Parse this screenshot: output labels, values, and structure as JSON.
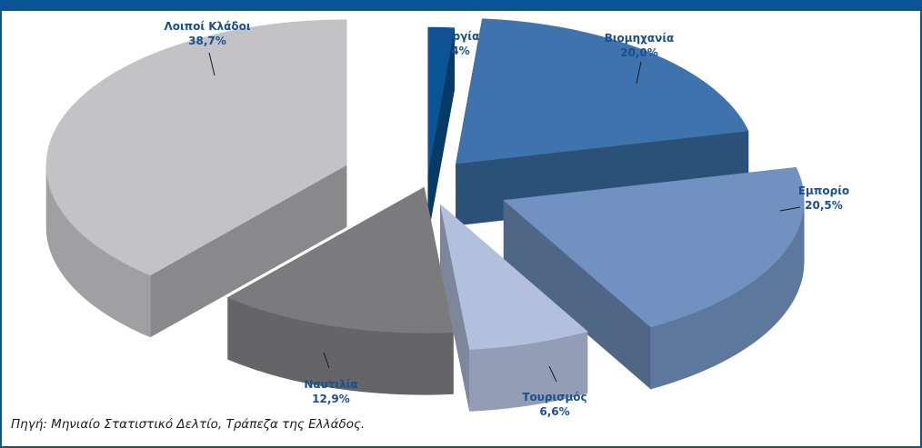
{
  "header": {
    "title": "",
    "band_color": "#0b5394"
  },
  "chart_data": {
    "type": "pie",
    "style": "3d-exploded",
    "title": "",
    "unit": "%",
    "slices": [
      {
        "label": "Γεωργία",
        "value": 1.4,
        "value_text": "1,4%",
        "color": "#0b5394",
        "label_color": "#1a4f8f"
      },
      {
        "label": "Βιομηχανία",
        "value": 20.0,
        "value_text": "20,0%",
        "color": "#3f73ad",
        "label_color": "#1a4f8f"
      },
      {
        "label": "Εμπορίο",
        "value": 20.5,
        "value_text": "20,5%",
        "color": "#7191c0",
        "label_color": "#1a4f8f"
      },
      {
        "label": "Τουρισμός",
        "value": 6.6,
        "value_text": "6,6%",
        "color": "#b3c0dd",
        "label_color": "#1a4f8f"
      },
      {
        "label": "Ναυτιλία",
        "value": 12.9,
        "value_text": "12,9%",
        "color": "#7b7b7e",
        "label_color": "#1a4f8f"
      },
      {
        "label": "Λοιποί Κλάδοι",
        "value": 38.7,
        "value_text": "38,7%",
        "color": "#c3c3c6",
        "label_color": "#1a4f8f"
      }
    ]
  },
  "source": "Πηγή: Μηνιαίο Στατιστικό Δελτίο, Τράπεζα της Ελλάδος."
}
